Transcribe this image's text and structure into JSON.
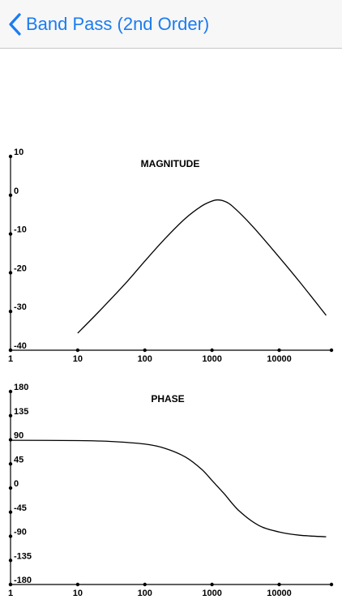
{
  "navbar": {
    "back_label": "Band Pass (2nd Order)",
    "accent_color": "#1a7cf0",
    "back_icon": "chevron-left-icon"
  },
  "chart_data": [
    {
      "type": "line",
      "title": "MAGNITUDE",
      "x_scale": "log",
      "xlim": [
        1,
        60000
      ],
      "ylim": [
        -40,
        10
      ],
      "x_ticks": [
        1,
        10,
        100,
        1000,
        10000
      ],
      "x_tick_labels": [
        "1",
        "10",
        "100",
        "1000",
        "10000"
      ],
      "y_ticks": [
        10,
        0,
        -10,
        -20,
        -30,
        -40
      ],
      "y_tick_labels": [
        "10",
        "0",
        "-10",
        "-20",
        "-30",
        "-40"
      ],
      "series": [
        {
          "x": [
            10,
            20,
            50,
            100,
            200,
            400,
            700,
            1000,
            1200,
            1500,
            2000,
            4000,
            10000,
            20000,
            50000
          ],
          "values": [
            -35.6,
            -30.3,
            -23.0,
            -17.0,
            -11.2,
            -6.0,
            -2.8,
            -1.5,
            -1.2,
            -1.5,
            -2.8,
            -8.0,
            -16.0,
            -22.3,
            -31.0
          ],
          "color": "#000000"
        }
      ]
    },
    {
      "type": "line",
      "title": "PHASE",
      "x_scale": "log",
      "xlim": [
        1,
        60000
      ],
      "ylim": [
        -180,
        180
      ],
      "x_ticks": [
        1,
        10,
        100,
        1000,
        10000
      ],
      "x_tick_labels": [
        "1",
        "10",
        "100",
        "1000",
        "10000"
      ],
      "y_ticks": [
        180,
        135,
        90,
        45,
        0,
        -45,
        -90,
        -135,
        -180
      ],
      "y_tick_labels": [
        "180",
        "135",
        "90",
        "45",
        "0",
        "-45",
        "-90",
        "-135",
        "-180"
      ],
      "series": [
        {
          "x": [
            1,
            10,
            30,
            100,
            200,
            400,
            700,
            1000,
            1500,
            2500,
            5000,
            10000,
            20000,
            50000
          ],
          "values": [
            89,
            88.5,
            87,
            82,
            74,
            58,
            35,
            14,
            -10,
            -42,
            -70,
            -82,
            -88,
            -91
          ],
          "color": "#000000"
        }
      ]
    }
  ]
}
